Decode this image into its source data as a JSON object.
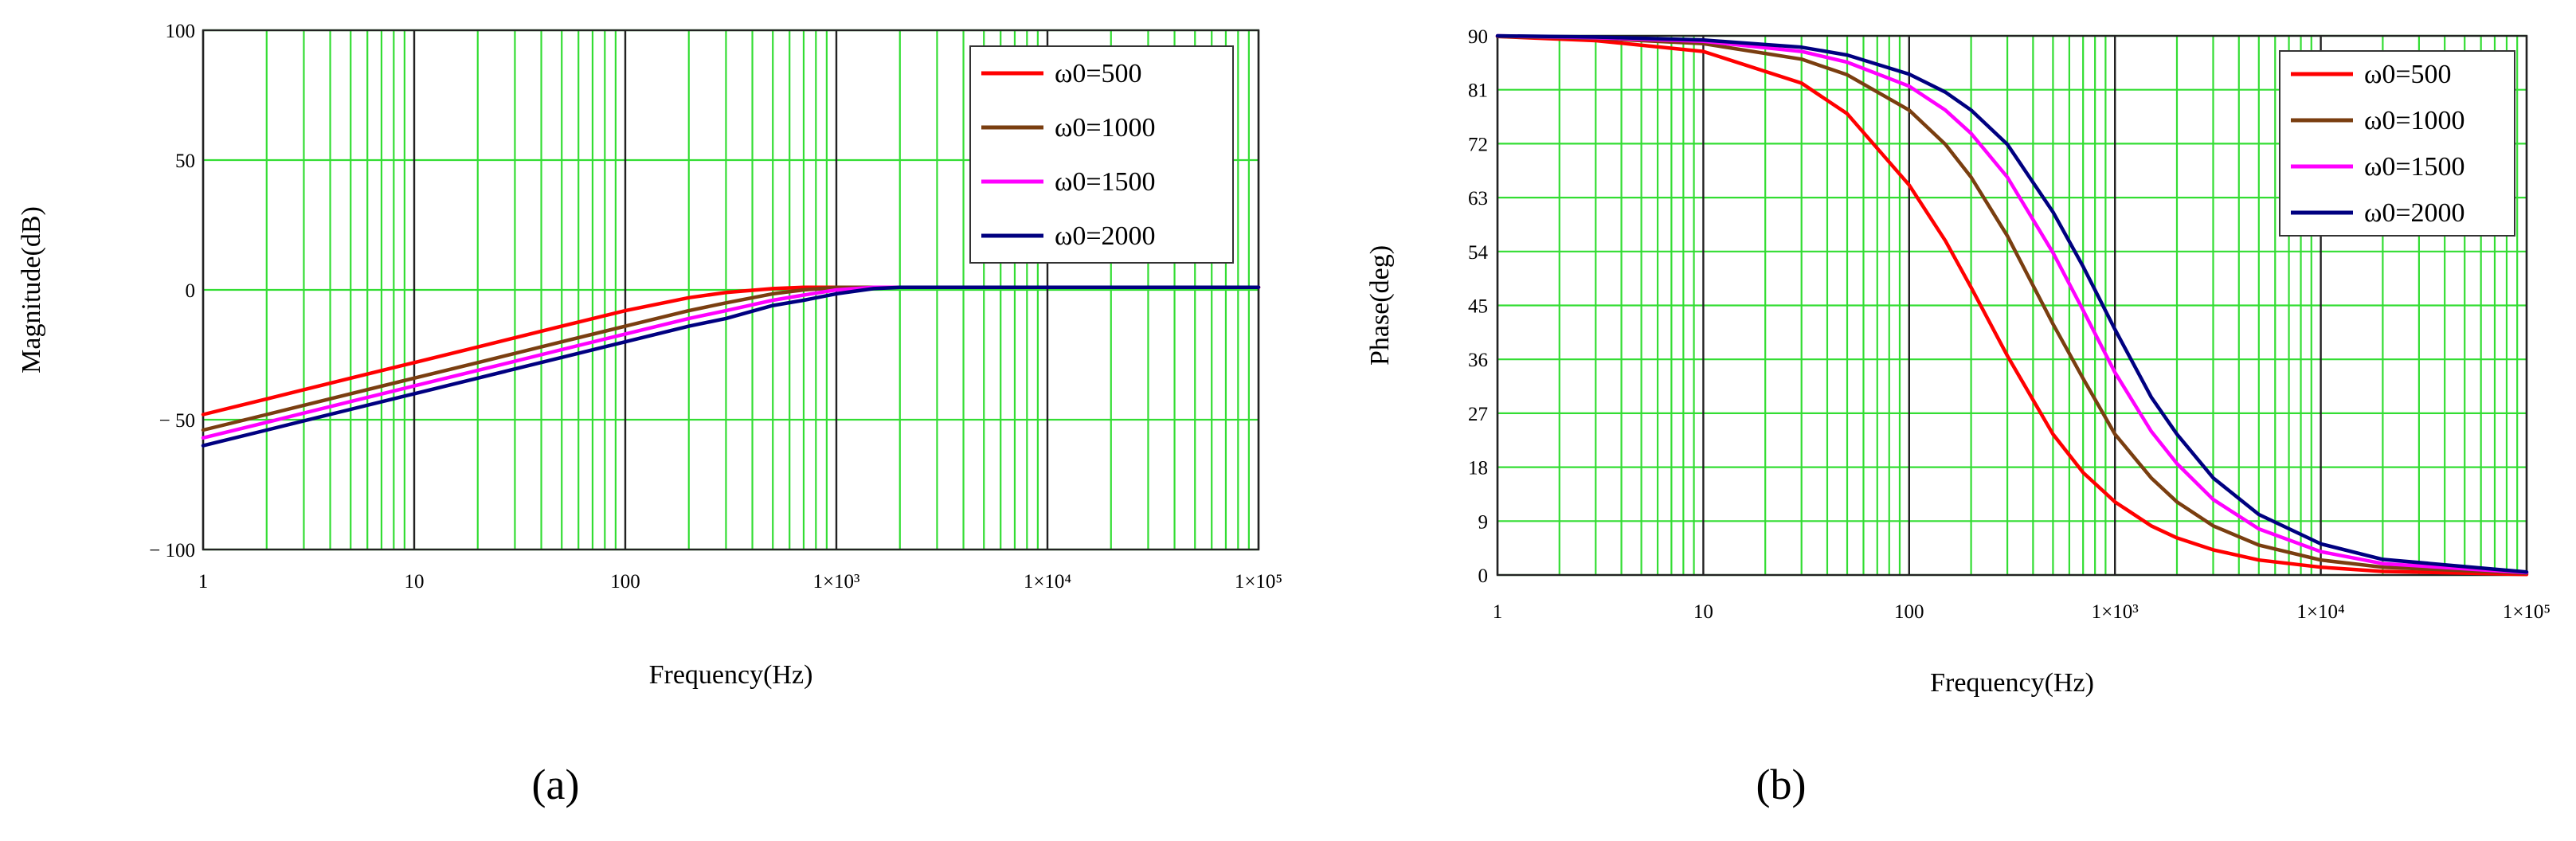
{
  "chart_data": [
    {
      "type": "line",
      "panel_label": "(a)",
      "xlabel": "Frequency(Hz)",
      "ylabel": "Magnitude(dB)",
      "xscale": "log",
      "xlim": [
        1,
        100000
      ],
      "ylim": [
        -100,
        100
      ],
      "x_ticks": [
        {
          "value": 1,
          "label": "1"
        },
        {
          "value": 10,
          "label": "10"
        },
        {
          "value": 100,
          "label": "100"
        },
        {
          "value": 1000,
          "label": "1×10³"
        },
        {
          "value": 10000,
          "label": "1×10⁴"
        },
        {
          "value": 100000,
          "label": "1×10⁵"
        }
      ],
      "y_ticks": [
        {
          "value": 100,
          "label": "100"
        },
        {
          "value": 50,
          "label": "50"
        },
        {
          "value": 0,
          "label": "0"
        },
        {
          "value": -50,
          "label": "− 50"
        },
        {
          "value": -100,
          "label": "− 100"
        }
      ],
      "grid": true,
      "legend_position": "top-right",
      "x": [
        1,
        2,
        5,
        10,
        20,
        50,
        100,
        200,
        300,
        500,
        700,
        1000,
        1500,
        2000,
        3000,
        5000,
        10000,
        30000,
        100000
      ],
      "series": [
        {
          "name": "ω0=500",
          "color": "#ff0000",
          "values": [
            -48,
            -42,
            -34,
            -28,
            -22,
            -14,
            -8,
            -3,
            -1,
            0.5,
            1,
            1,
            1,
            1,
            1,
            1,
            1,
            1,
            1
          ]
        },
        {
          "name": "ω0=1000",
          "color": "#7a3e10",
          "values": [
            -54,
            -48,
            -40,
            -34,
            -28,
            -20,
            -14,
            -8,
            -5,
            -1.5,
            0,
            1,
            1,
            1,
            1,
            1,
            1,
            1,
            1
          ]
        },
        {
          "name": "ω0=1500",
          "color": "#ff00ff",
          "values": [
            -57,
            -51,
            -43,
            -37,
            -31,
            -23,
            -17,
            -11,
            -8,
            -4,
            -2,
            0,
            1,
            1,
            1,
            1,
            1,
            1,
            1
          ]
        },
        {
          "name": "ω0=2000",
          "color": "#000080",
          "values": [
            -60,
            -54,
            -46,
            -40,
            -34,
            -26,
            -20,
            -14,
            -11,
            -6,
            -4,
            -1.5,
            0.5,
            1,
            1,
            1,
            1,
            1,
            1
          ]
        }
      ]
    },
    {
      "type": "line",
      "panel_label": "(b)",
      "xlabel": "Frequency(Hz)",
      "ylabel": "Phase(deg)",
      "xscale": "log",
      "xlim": [
        1,
        100000
      ],
      "ylim": [
        0,
        90
      ],
      "x_ticks": [
        {
          "value": 1,
          "label": "1"
        },
        {
          "value": 10,
          "label": "10"
        },
        {
          "value": 100,
          "label": "100"
        },
        {
          "value": 1000,
          "label": "1×10³"
        },
        {
          "value": 10000,
          "label": "1×10⁴"
        },
        {
          "value": 100000,
          "label": "1×10⁵"
        }
      ],
      "y_ticks": [
        {
          "value": 90,
          "label": "90"
        },
        {
          "value": 81,
          "label": "81"
        },
        {
          "value": 72,
          "label": "72"
        },
        {
          "value": 63,
          "label": "63"
        },
        {
          "value": 54,
          "label": "54"
        },
        {
          "value": 45,
          "label": "45"
        },
        {
          "value": 36,
          "label": "36"
        },
        {
          "value": 27,
          "label": "27"
        },
        {
          "value": 18,
          "label": "18"
        },
        {
          "value": 9,
          "label": "9"
        },
        {
          "value": 0,
          "label": "0"
        }
      ],
      "grid": true,
      "legend_position": "top-right",
      "x": [
        1,
        3,
        10,
        30,
        50,
        100,
        150,
        200,
        300,
        500,
        700,
        1000,
        1500,
        2000,
        3000,
        5000,
        10000,
        20000,
        100000
      ],
      "series": [
        {
          "name": "ω0=500",
          "color": "#ff0000",
          "values": [
            89.9,
            89.2,
            87.4,
            82.1,
            77.0,
            65.1,
            55.8,
            48.0,
            36.6,
            23.5,
            17.1,
            12.2,
            8.2,
            6.2,
            4.2,
            2.5,
            1.3,
            0.6,
            0.1
          ]
        },
        {
          "name": "ω0=1000",
          "color": "#7a3e10",
          "values": [
            89.9,
            89.6,
            88.7,
            86.1,
            83.5,
            77.6,
            71.9,
            66.4,
            56.6,
            41.9,
            32.8,
            23.5,
            16.2,
            12.2,
            8.2,
            5.0,
            2.5,
            1.3,
            0.3
          ]
        },
        {
          "name": "ω0=1500",
          "color": "#ff00ff",
          "values": [
            90.0,
            89.7,
            89.1,
            87.4,
            85.6,
            81.6,
            77.6,
            73.7,
            66.4,
            53.8,
            44.2,
            33.8,
            24.0,
            18.6,
            12.6,
            7.7,
            3.9,
            1.9,
            0.4
          ]
        },
        {
          "name": "ω0=2000",
          "color": "#000080",
          "values": [
            90.0,
            89.8,
            89.3,
            88.1,
            86.8,
            83.6,
            80.6,
            77.6,
            71.9,
            60.6,
            51.5,
            41.0,
            29.7,
            23.5,
            16.2,
            10.1,
            5.2,
            2.6,
            0.5
          ]
        }
      ]
    }
  ]
}
